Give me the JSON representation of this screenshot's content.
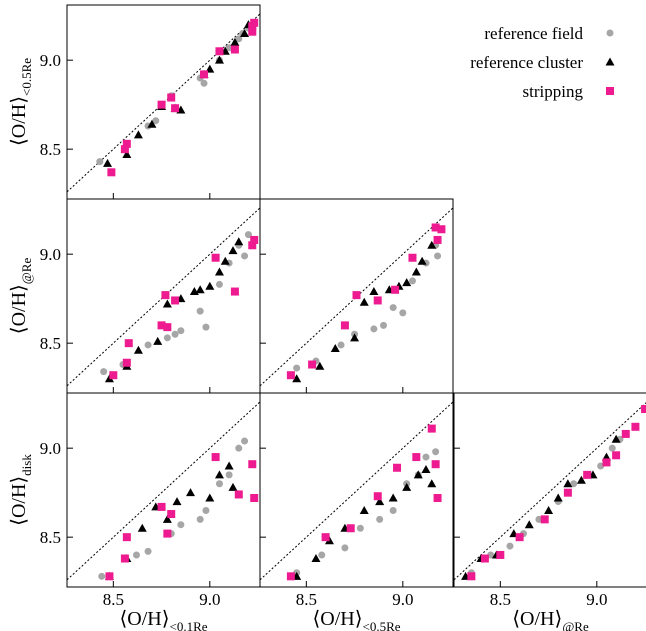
{
  "chart_data": [
    {
      "type": "scatter",
      "ylabel": "⟨O/H⟩<0.5Re",
      "xlim": [
        8.26,
        9.26
      ],
      "ylim": [
        8.22,
        9.31
      ],
      "xticks": [
        8.5,
        9
      ],
      "yticks": [
        8.5,
        {
          "value": 9,
          "label": "9.0"
        }
      ],
      "xtick_labels": false,
      "ytick_labels": true,
      "series": [
        {
          "name": "reference field",
          "color": "#a6a6a6",
          "marker": "o",
          "x": [
            8.43,
            8.57,
            8.68,
            8.72,
            8.8,
            8.95,
            8.97,
            9.05,
            9.1,
            9.15,
            9.17,
            9.2
          ],
          "y": [
            8.43,
            8.52,
            8.63,
            8.66,
            8.8,
            8.9,
            8.87,
            9.0,
            9.07,
            9.12,
            9.15,
            9.18
          ]
        },
        {
          "name": "reference cluster",
          "color": "#000000",
          "marker": "^",
          "x": [
            8.47,
            8.57,
            8.63,
            8.7,
            8.75,
            8.82,
            8.85,
            8.97,
            9.0,
            9.05,
            9.08,
            9.13,
            9.18,
            9.2
          ],
          "y": [
            8.42,
            8.47,
            8.58,
            8.64,
            8.74,
            8.73,
            8.72,
            8.92,
            8.95,
            9.0,
            9.05,
            9.1,
            9.15,
            9.2
          ]
        },
        {
          "name": "stripping",
          "color": "#ee1a8f",
          "marker": "s",
          "x": [
            8.49,
            8.56,
            8.57,
            8.75,
            8.8,
            8.82,
            8.97,
            9.05,
            9.13,
            9.22,
            9.23,
            9.22
          ],
          "y": [
            8.37,
            8.5,
            8.53,
            8.75,
            8.79,
            8.73,
            8.92,
            9.05,
            9.06,
            9.19,
            9.21,
            9.16
          ]
        }
      ]
    },
    {
      "type": "scatter",
      "ylabel": "⟨O/H⟩@Re",
      "xlim": [
        8.26,
        9.26
      ],
      "ylim": [
        8.22,
        9.31
      ],
      "xticks": [
        8.5,
        9
      ],
      "yticks": [
        8.5,
        {
          "value": 9,
          "label": "9.0"
        }
      ],
      "xtick_labels": false,
      "ytick_labels": true,
      "series": [
        {
          "color": "#a6a6a6",
          "marker": "o",
          "x": [
            8.45,
            8.55,
            8.68,
            8.78,
            8.82,
            8.85,
            8.95,
            8.98,
            9.05,
            9.1,
            9.15,
            9.18,
            9.2
          ],
          "y": [
            8.34,
            8.38,
            8.49,
            8.53,
            8.55,
            8.57,
            8.68,
            8.59,
            8.83,
            8.95,
            9.05,
            8.99,
            9.11
          ]
        },
        {
          "color": "#000000",
          "marker": "^",
          "x": [
            8.48,
            8.57,
            8.63,
            8.73,
            8.78,
            8.85,
            8.92,
            8.95,
            9.0,
            9.05,
            9.08,
            9.12,
            9.15
          ],
          "y": [
            8.3,
            8.37,
            8.46,
            8.51,
            8.72,
            8.75,
            8.79,
            8.8,
            8.82,
            8.9,
            8.96,
            9.02,
            9.07
          ]
        },
        {
          "color": "#ee1a8f",
          "marker": "s",
          "x": [
            8.5,
            8.57,
            8.58,
            8.75,
            8.77,
            8.78,
            8.82,
            9.03,
            9.13,
            9.22,
            9.23
          ],
          "y": [
            8.32,
            8.39,
            8.5,
            8.6,
            8.77,
            8.59,
            8.74,
            8.98,
            8.79,
            9.05,
            9.08
          ]
        }
      ]
    },
    {
      "type": "scatter",
      "xlim": [
        8.26,
        9.26
      ],
      "ylim": [
        8.22,
        9.31
      ],
      "xticks": [
        8.5,
        9
      ],
      "yticks": [
        8.5,
        9
      ],
      "xtick_labels": false,
      "ytick_labels": false,
      "series": [
        {
          "color": "#a6a6a6",
          "marker": "o",
          "x": [
            8.45,
            8.55,
            8.68,
            8.75,
            8.85,
            8.9,
            8.95,
            9.0,
            9.05,
            9.12,
            9.17,
            9.18
          ],
          "y": [
            8.36,
            8.4,
            8.49,
            8.55,
            8.58,
            8.6,
            8.7,
            8.67,
            8.85,
            8.95,
            9.05,
            8.99
          ]
        },
        {
          "color": "#000000",
          "marker": "^",
          "x": [
            8.45,
            8.57,
            8.65,
            8.75,
            8.8,
            8.85,
            8.93,
            8.98,
            9.02,
            9.07,
            9.1,
            9.15
          ],
          "y": [
            8.3,
            8.37,
            8.47,
            8.53,
            8.73,
            8.79,
            8.8,
            8.82,
            8.84,
            8.9,
            8.96,
            9.05
          ]
        },
        {
          "color": "#ee1a8f",
          "marker": "s",
          "x": [
            8.42,
            8.53,
            8.7,
            8.76,
            8.87,
            8.96,
            9.05,
            9.17,
            9.18,
            9.2
          ],
          "y": [
            8.32,
            8.38,
            8.6,
            8.77,
            8.74,
            8.8,
            8.98,
            9.15,
            9.08,
            9.14
          ]
        }
      ]
    },
    {
      "type": "scatter",
      "xlabel": "⟨O/H⟩<0.1Re",
      "ylabel": "⟨O/H⟩disk",
      "xlim": [
        8.26,
        9.26
      ],
      "ylim": [
        8.22,
        9.31
      ],
      "xticks": [
        8.5,
        {
          "value": 9,
          "label": "9.0"
        }
      ],
      "yticks": [
        8.5,
        {
          "value": 9,
          "label": "9.0"
        }
      ],
      "xtick_labels": true,
      "ytick_labels": true,
      "series": [
        {
          "color": "#a6a6a6",
          "marker": "o",
          "x": [
            8.44,
            8.62,
            8.68,
            8.8,
            8.85,
            8.95,
            8.98,
            9.05,
            9.1,
            9.15,
            9.18
          ],
          "y": [
            8.28,
            8.4,
            8.42,
            8.52,
            8.57,
            8.6,
            8.65,
            8.8,
            8.85,
            9.0,
            9.04
          ]
        },
        {
          "color": "#000000",
          "marker": "^",
          "x": [
            8.48,
            8.57,
            8.65,
            8.72,
            8.78,
            8.83,
            8.9,
            9.0,
            9.05,
            9.1,
            9.12
          ],
          "y": [
            8.28,
            8.38,
            8.55,
            8.67,
            8.6,
            8.7,
            8.75,
            8.72,
            8.85,
            8.9,
            8.78
          ]
        },
        {
          "color": "#ee1a8f",
          "marker": "s",
          "x": [
            8.48,
            8.56,
            8.57,
            8.75,
            8.78,
            8.8,
            9.03,
            9.15,
            9.22,
            9.23
          ],
          "y": [
            8.28,
            8.38,
            8.5,
            8.67,
            8.52,
            8.63,
            8.95,
            8.74,
            8.91,
            8.72
          ]
        }
      ]
    },
    {
      "type": "scatter",
      "xlabel": "⟨O/H⟩<0.5Re",
      "xlim": [
        8.26,
        9.26
      ],
      "ylim": [
        8.22,
        9.31
      ],
      "xticks": [
        8.5,
        {
          "value": 9,
          "label": "9.0"
        }
      ],
      "yticks": [
        8.5,
        9
      ],
      "xtick_labels": true,
      "ytick_labels": false,
      "series": [
        {
          "color": "#a6a6a6",
          "marker": "o",
          "x": [
            8.45,
            8.58,
            8.7,
            8.78,
            8.88,
            8.95,
            9.02,
            9.08,
            9.12,
            9.17
          ],
          "y": [
            8.3,
            8.4,
            8.44,
            8.55,
            8.6,
            8.65,
            8.8,
            8.85,
            8.95,
            8.98
          ]
        },
        {
          "color": "#000000",
          "marker": "^",
          "x": [
            8.45,
            8.55,
            8.62,
            8.7,
            8.8,
            8.88,
            8.95,
            9.02,
            9.08,
            9.12,
            9.15
          ],
          "y": [
            8.28,
            8.38,
            8.48,
            8.55,
            8.65,
            8.7,
            8.72,
            8.78,
            8.85,
            8.88,
            8.8
          ]
        },
        {
          "color": "#ee1a8f",
          "marker": "s",
          "x": [
            8.42,
            8.6,
            8.73,
            8.87,
            8.97,
            9.07,
            9.15,
            9.17,
            9.18
          ],
          "y": [
            8.28,
            8.5,
            8.55,
            8.73,
            8.89,
            8.95,
            9.11,
            8.91,
            8.72
          ]
        }
      ]
    },
    {
      "type": "scatter",
      "xlabel": "⟨O/H⟩@Re",
      "xlim": [
        8.26,
        9.26
      ],
      "ylim": [
        8.22,
        9.31
      ],
      "xticks": [
        8.5,
        {
          "value": 9,
          "label": "9.0"
        }
      ],
      "yticks": [
        8.5,
        9
      ],
      "xtick_labels": true,
      "ytick_labels": false,
      "series": [
        {
          "color": "#a6a6a6",
          "marker": "o",
          "x": [
            8.35,
            8.45,
            8.55,
            8.62,
            8.7,
            8.8,
            8.88,
            8.95,
            9.02,
            9.08,
            9.12
          ],
          "y": [
            8.3,
            8.4,
            8.45,
            8.52,
            8.6,
            8.7,
            8.8,
            8.85,
            8.9,
            9.0,
            9.05
          ]
        },
        {
          "color": "#000000",
          "marker": "^",
          "x": [
            8.32,
            8.4,
            8.48,
            8.57,
            8.65,
            8.75,
            8.8,
            8.85,
            8.92,
            8.98,
            9.05,
            9.1
          ],
          "y": [
            8.28,
            8.38,
            8.4,
            8.52,
            8.57,
            8.65,
            8.72,
            8.8,
            8.82,
            8.85,
            8.95,
            9.05
          ]
        },
        {
          "color": "#ee1a8f",
          "marker": "s",
          "x": [
            8.35,
            8.42,
            8.5,
            8.6,
            8.73,
            8.85,
            8.95,
            9.05,
            9.1,
            9.15,
            9.2,
            9.25
          ],
          "y": [
            8.28,
            8.38,
            8.4,
            8.5,
            8.6,
            8.75,
            8.85,
            8.92,
            8.96,
            9.08,
            9.12,
            9.22
          ]
        }
      ]
    }
  ]
}
